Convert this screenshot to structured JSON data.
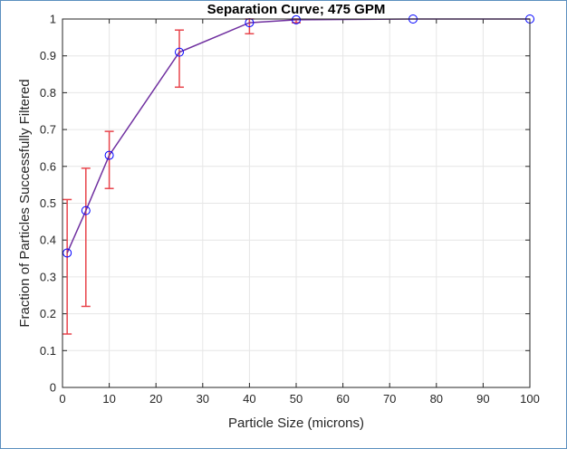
{
  "chart_data": {
    "type": "line",
    "title": "Separation Curve; 475 GPM",
    "xlabel": "Particle Size (microns)",
    "ylabel": "Fraction of Particles Successfully Filtered",
    "xlim": [
      0,
      100
    ],
    "ylim": [
      0,
      1
    ],
    "xticks": [
      0,
      10,
      20,
      30,
      40,
      50,
      60,
      70,
      80,
      90,
      100
    ],
    "yticks": [
      0,
      0.1,
      0.2,
      0.3,
      0.4,
      0.5,
      0.6,
      0.7,
      0.8,
      0.9,
      1
    ],
    "grid": true,
    "series": [
      {
        "x": [
          1,
          5,
          10,
          25,
          40,
          50,
          75,
          100
        ],
        "y": [
          0.365,
          0.48,
          0.63,
          0.91,
          0.99,
          0.998,
          1.0,
          1.0
        ],
        "err_low": [
          0.145,
          0.22,
          0.54,
          0.815,
          0.96,
          0.99,
          null,
          null
        ],
        "err_high": [
          0.51,
          0.595,
          0.695,
          0.97,
          1.0,
          1.0,
          null,
          null
        ],
        "line_color": "#7030a0",
        "marker_color": "#0000ff",
        "marker": "circle",
        "error_color": "#e8454c"
      }
    ]
  }
}
